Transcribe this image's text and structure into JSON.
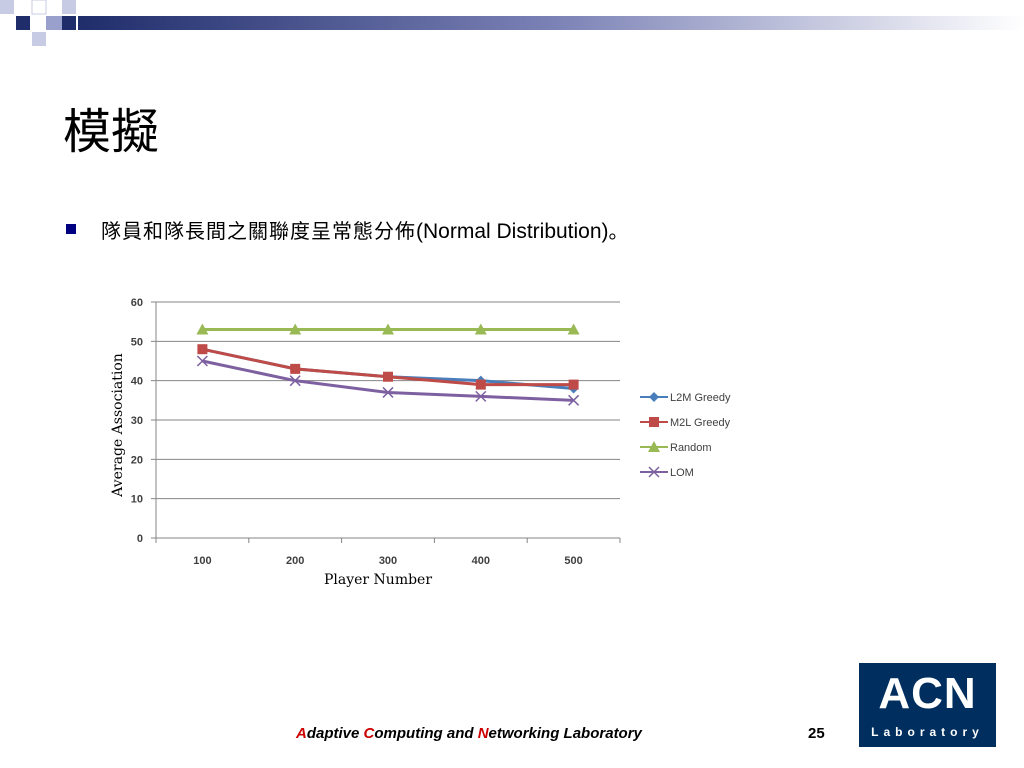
{
  "slide": {
    "title": "模擬",
    "bullet_cjk": "隊員和隊長間之關聯度呈常態分佈",
    "bullet_latin": "(Normal Distribution)",
    "bullet_end": "。"
  },
  "footer": {
    "a": "A",
    "daptive": "daptive ",
    "c": "C",
    "omputing": "omputing and ",
    "n": "N",
    "etworking": "etworking Laboratory",
    "page": "25"
  },
  "logo": {
    "main": "ACN",
    "sub": "Laboratory"
  },
  "colors": {
    "header_dark": "#1f2d6b",
    "footer_accent": "#cc0000",
    "logo_bg": "#002f5f"
  },
  "chart_data": {
    "type": "line",
    "x": [
      100,
      200,
      300,
      400,
      500
    ],
    "xlabel": "Player Number",
    "ylabel": "Average Association",
    "ylim": [
      0,
      60
    ],
    "yticks": [
      0,
      10,
      20,
      30,
      40,
      50,
      60
    ],
    "grid": true,
    "legend": "right",
    "series": [
      {
        "name": "L2M Greedy",
        "values": [
          48,
          43,
          41,
          40,
          38
        ],
        "color": "#4a7ebb",
        "marker": "diamond"
      },
      {
        "name": "M2L Greedy",
        "values": [
          48,
          43,
          41,
          39,
          39
        ],
        "color": "#be4b48",
        "marker": "square"
      },
      {
        "name": "Random",
        "values": [
          53,
          53,
          53,
          53,
          53
        ],
        "color": "#98b954",
        "marker": "triangle"
      },
      {
        "name": "LOM",
        "values": [
          45,
          40,
          37,
          36,
          35
        ],
        "color": "#7d60a0",
        "marker": "x"
      }
    ]
  }
}
